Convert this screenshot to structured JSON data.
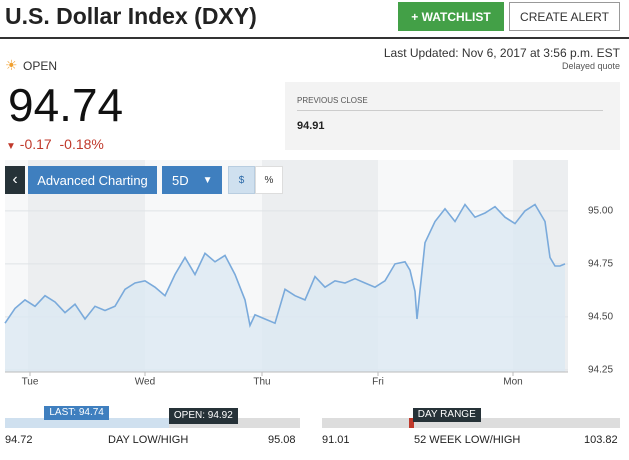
{
  "header": {
    "title": "U.S. Dollar Index (DXY)",
    "watchlist_button": "+ WATCHLIST",
    "alert_button": "CREATE ALERT"
  },
  "status": {
    "market": "OPEN",
    "last_updated": "Last Updated: Nov 6, 2017 at 3:56 p.m. EST",
    "delay": "Delayed quote"
  },
  "quote": {
    "price": "94.74",
    "change": "-0.17",
    "change_percent": "-0.18%"
  },
  "previous_close": {
    "label": "PREVIOUS CLOSE",
    "value": "94.91"
  },
  "controls": {
    "back": "‹",
    "advanced": "Advanced Charting",
    "period": "5D",
    "dollar": "$",
    "percent": "%"
  },
  "chart_data": {
    "type": "line",
    "color": "#7aaadb",
    "fill": "#dce8f3",
    "x": [
      0,
      10,
      20,
      30,
      40,
      50,
      60,
      70,
      80,
      90,
      100,
      110,
      120,
      130,
      140,
      150,
      160,
      170,
      180,
      190,
      200,
      210,
      220,
      230,
      240,
      245,
      250,
      260,
      270,
      280,
      290,
      300,
      310,
      320,
      330,
      340,
      350,
      360,
      370,
      380,
      390,
      400,
      405,
      410,
      412,
      420,
      430,
      440,
      450,
      460,
      470,
      480,
      490,
      500,
      510,
      520,
      530,
      540,
      545,
      550,
      555,
      560
    ],
    "values": [
      94.47,
      94.54,
      94.58,
      94.55,
      94.6,
      94.57,
      94.52,
      94.56,
      94.49,
      94.55,
      94.53,
      94.55,
      94.63,
      94.66,
      94.67,
      94.64,
      94.6,
      94.7,
      94.78,
      94.7,
      94.8,
      94.76,
      94.79,
      94.7,
      94.58,
      94.46,
      94.51,
      94.49,
      94.47,
      94.63,
      94.6,
      94.58,
      94.69,
      94.64,
      94.67,
      94.66,
      94.68,
      94.66,
      94.64,
      94.67,
      94.75,
      94.76,
      94.72,
      94.62,
      94.49,
      94.85,
      94.95,
      95.01,
      94.95,
      95.03,
      94.97,
      94.99,
      95.02,
      94.97,
      94.94,
      95.0,
      95.03,
      94.95,
      94.78,
      94.74,
      94.74,
      94.75
    ],
    "xlim": [
      0,
      560
    ],
    "xticks": [
      {
        "value": 25,
        "label": "Tue"
      },
      {
        "value": 140,
        "label": "Wed"
      },
      {
        "value": 257,
        "label": "Thu"
      },
      {
        "value": 373,
        "label": "Fri"
      },
      {
        "value": 508,
        "label": "Mon"
      }
    ],
    "ylim": [
      94.24,
      95.24
    ],
    "yticks": [
      {
        "value": 95.0,
        "label": "95.00"
      },
      {
        "value": 94.75,
        "label": "94.75"
      },
      {
        "value": 94.5,
        "label": "94.50"
      },
      {
        "value": 94.25,
        "label": "94.25"
      }
    ],
    "grid": true
  },
  "day_range": {
    "last_label": "LAST:",
    "last": "94.74",
    "open_label": "OPEN:",
    "open": "94.92",
    "low": "94.72",
    "high": "95.08",
    "label": "DAY LOW/HIGH"
  },
  "week52_range": {
    "marker": "DAY RANGE",
    "low": "91.01",
    "high": "103.82",
    "label": "52 WEEK LOW/HIGH"
  }
}
